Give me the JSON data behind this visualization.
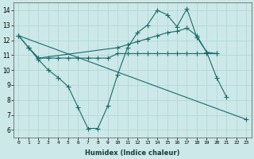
{
  "xlabel": "Humidex (Indice chaleur)",
  "bg_color": "#cce8e8",
  "line_color": "#1a6b6b",
  "xlim": [
    -0.5,
    23.5
  ],
  "ylim": [
    5.5,
    14.5
  ],
  "xticks": [
    0,
    1,
    2,
    3,
    4,
    5,
    6,
    7,
    8,
    9,
    10,
    11,
    12,
    13,
    14,
    15,
    16,
    17,
    18,
    19,
    20,
    21,
    22,
    23
  ],
  "yticks": [
    6,
    7,
    8,
    9,
    10,
    11,
    12,
    13,
    14
  ],
  "line_zigzag": {
    "x": [
      0,
      1,
      2,
      3,
      4,
      5,
      6,
      7,
      8,
      9,
      10,
      11,
      12,
      13,
      14,
      15,
      16,
      17,
      18,
      19,
      20,
      21
    ],
    "y": [
      12.3,
      11.5,
      10.7,
      10.0,
      9.5,
      8.9,
      7.5,
      6.1,
      6.1,
      7.6,
      9.7,
      11.5,
      12.5,
      13.0,
      14.0,
      13.7,
      12.9,
      14.1,
      12.2,
      11.2,
      9.5,
      8.2
    ]
  },
  "line_rising": {
    "x": [
      0,
      1,
      2,
      10,
      11,
      12,
      13,
      14,
      15,
      16,
      17,
      18,
      19,
      20
    ],
    "y": [
      12.3,
      11.5,
      10.8,
      11.5,
      11.7,
      11.9,
      12.1,
      12.3,
      12.5,
      12.6,
      12.8,
      12.3,
      11.2,
      11.1
    ]
  },
  "line_flat": {
    "x": [
      1,
      2,
      3,
      4,
      5,
      6,
      7,
      8,
      9,
      10,
      11,
      12,
      13,
      14,
      15,
      16,
      17,
      18,
      19,
      20
    ],
    "y": [
      11.5,
      10.8,
      10.8,
      10.8,
      10.8,
      10.8,
      10.8,
      10.8,
      10.8,
      11.1,
      11.1,
      11.1,
      11.1,
      11.1,
      11.1,
      11.1,
      11.1,
      11.1,
      11.1,
      11.1
    ]
  },
  "line_diagonal": {
    "x": [
      0,
      23
    ],
    "y": [
      12.3,
      6.7
    ]
  }
}
